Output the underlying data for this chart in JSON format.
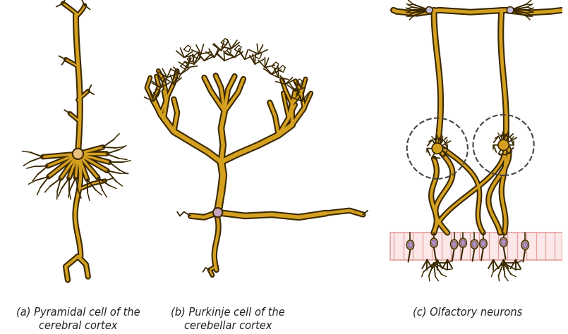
{
  "title_a": "(a) Pyramidal cell of the\ncerebral cortex",
  "title_b": "(b) Purkinje cell of the\ncerebellar cortex",
  "title_c": "(c) Olfactory neurons",
  "bg_color": "#ffffff",
  "neuron_fill": "#d4a020",
  "neuron_outline": "#3a2800",
  "soma_fill_a": "#e8c080",
  "soma_fill_b": "#c8a8c0",
  "soma_fill_c": "#d4a020",
  "epithelium_fill": "#fce8e8",
  "epithelium_stroke": "#e8a0a0",
  "dashed_color": "#444444",
  "label_color": "#222222",
  "label_fontsize": 10.5
}
